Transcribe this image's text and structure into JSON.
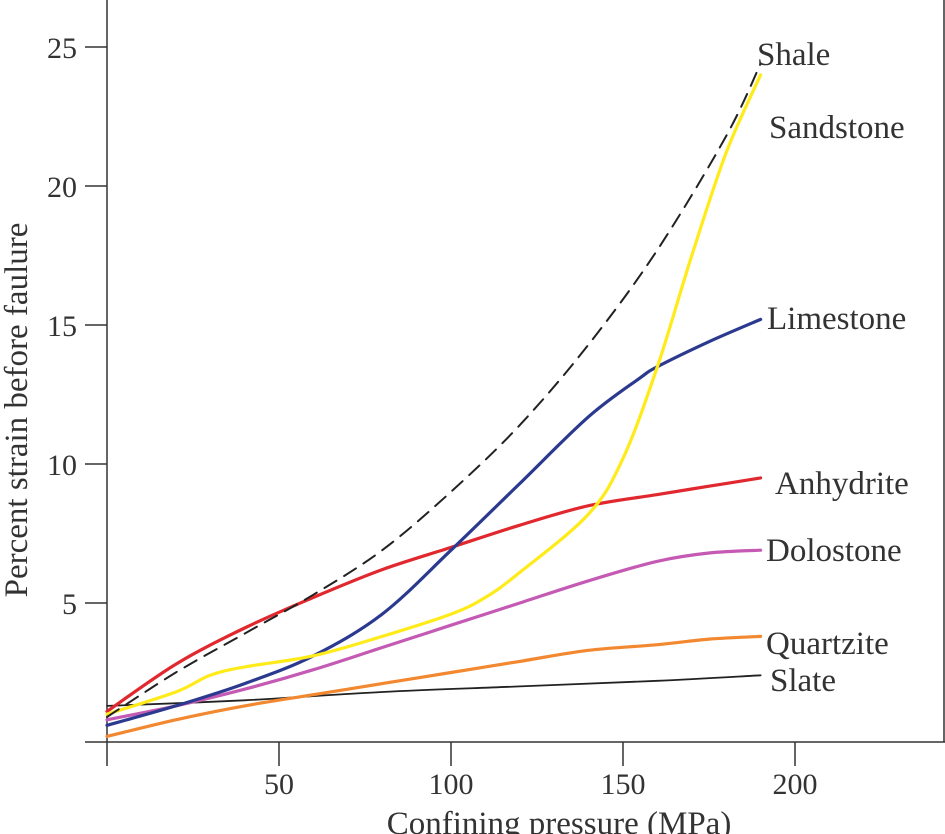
{
  "chart_data": {
    "type": "line",
    "xlabel": "Confining pressure (MPa)",
    "ylabel": "Percent strain before faulure",
    "xlim": [
      0,
      240
    ],
    "ylim": [
      0,
      27
    ],
    "x_ticks": [
      50,
      100,
      150,
      200
    ],
    "y_ticks": [
      5,
      10,
      15,
      20,
      25
    ],
    "grid": false,
    "legend": "inline labels at line ends",
    "series": [
      {
        "name": "Shale",
        "color": "#222222",
        "dash": "dashed",
        "x": [
          0,
          20,
          40,
          60,
          80,
          100,
          120,
          140,
          160,
          180,
          190
        ],
        "y": [
          0.9,
          2.5,
          3.9,
          5.3,
          6.9,
          9.0,
          11.4,
          14.3,
          17.7,
          21.8,
          24.4
        ]
      },
      {
        "name": "Sandstone",
        "color": "#FFEB1A",
        "dash": "solid",
        "x": [
          0,
          20,
          30,
          40,
          60,
          80,
          100,
          110,
          120,
          140,
          150,
          160,
          170,
          180,
          190
        ],
        "y": [
          1.0,
          1.8,
          2.4,
          2.7,
          3.1,
          3.8,
          4.6,
          5.2,
          6.1,
          8.2,
          10.2,
          13.5,
          17.5,
          21.2,
          24.0
        ]
      },
      {
        "name": "Limestone",
        "color": "#2B3A8F",
        "dash": "solid",
        "x": [
          0,
          20,
          40,
          60,
          80,
          100,
          120,
          140,
          155,
          160,
          175,
          190
        ],
        "y": [
          0.6,
          1.3,
          2.1,
          3.1,
          4.6,
          6.9,
          9.3,
          11.7,
          13.1,
          13.5,
          14.4,
          15.2
        ]
      },
      {
        "name": "Anhydrite",
        "color": "#E0282E",
        "dash": "solid",
        "x": [
          0,
          20,
          40,
          60,
          80,
          100,
          120,
          140,
          160,
          175,
          190
        ],
        "y": [
          1.1,
          2.8,
          4.1,
          5.2,
          6.2,
          7.0,
          7.8,
          8.5,
          8.9,
          9.2,
          9.5
        ]
      },
      {
        "name": "Dolostone",
        "color": "#C45AB3",
        "dash": "solid",
        "x": [
          0,
          20,
          40,
          60,
          80,
          100,
          120,
          140,
          160,
          175,
          190
        ],
        "y": [
          0.8,
          1.3,
          1.9,
          2.6,
          3.4,
          4.2,
          5.0,
          5.8,
          6.5,
          6.8,
          6.9
        ]
      },
      {
        "name": "Quartzite",
        "color": "#F28830",
        "dash": "solid",
        "x": [
          0,
          20,
          40,
          60,
          80,
          100,
          120,
          140,
          160,
          175,
          190
        ],
        "y": [
          0.2,
          0.8,
          1.3,
          1.7,
          2.1,
          2.5,
          2.9,
          3.3,
          3.5,
          3.7,
          3.8
        ]
      },
      {
        "name": "Slate",
        "color": "#222222",
        "dash": "solid",
        "x": [
          0,
          40,
          80,
          120,
          160,
          190
        ],
        "y": [
          1.3,
          1.5,
          1.8,
          2.0,
          2.2,
          2.4
        ]
      }
    ]
  }
}
